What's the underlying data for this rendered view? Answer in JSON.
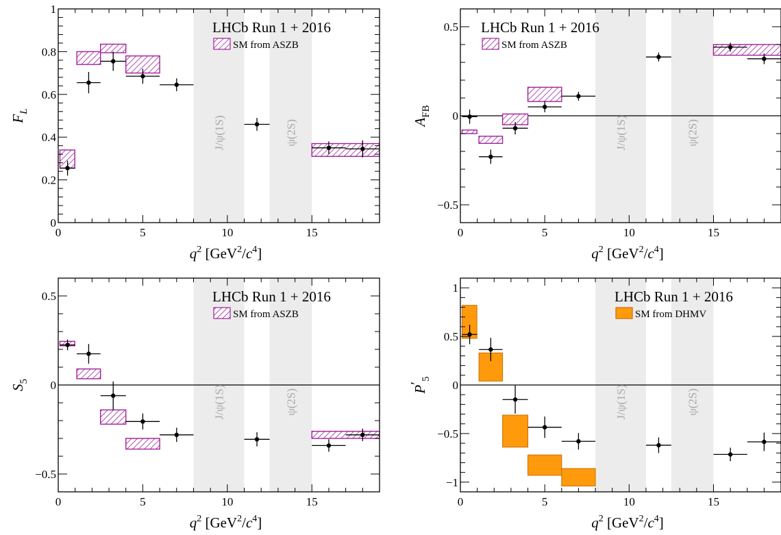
{
  "page": {
    "background": "#ffffff"
  },
  "style": {
    "asszb_color": "#a0209a",
    "dhmv_fill": "#ff9a0d",
    "dhmv_edge": "#c76f00",
    "veto_band": "#ececec",
    "veto_text": "#a9a9a9",
    "data_color": "#000000"
  },
  "chart_data": [
    {
      "type": "scatter",
      "panel": "FL",
      "title": "",
      "xlabel_parts": {
        "var": "q",
        "sup": "2",
        "unit_open": " [GeV",
        "unit_sup1": "2",
        "unit_mid": "/",
        "unit_var": "c",
        "unit_sup2": "4",
        "unit_close": "]"
      },
      "ylabel_parts": {
        "main": "F",
        "sub": "L"
      },
      "xlim": [
        0,
        19
      ],
      "ylim": [
        0,
        1
      ],
      "xticks": [
        "0",
        "5",
        "10",
        "15"
      ],
      "xtick_values": [
        0,
        5,
        10,
        15
      ],
      "yticks": [
        "0",
        "0.2",
        "0.4",
        "0.6",
        "0.8",
        "1"
      ],
      "ytick_values": [
        0,
        0.2,
        0.4,
        0.6,
        0.8,
        1
      ],
      "zero_line": false,
      "legend": {
        "title": "LHCb Run 1 + 2016",
        "entry": "SM from ASZB",
        "style": "hatch",
        "placement": "top-right"
      },
      "veto_bands": [
        {
          "label": "J/ψ(1S)",
          "x": [
            8,
            11
          ]
        },
        {
          "label": "ψ(2S)",
          "x": [
            12.5,
            15
          ]
        }
      ],
      "sm_prediction": [
        {
          "x": [
            0.1,
            0.98
          ],
          "y": [
            0.255,
            0.34
          ]
        },
        {
          "x": [
            1.1,
            2.5
          ],
          "y": [
            0.74,
            0.8
          ]
        },
        {
          "x": [
            2.5,
            4.0
          ],
          "y": [
            0.795,
            0.835
          ]
        },
        {
          "x": [
            4.0,
            6.0
          ],
          "y": [
            0.7,
            0.78
          ]
        },
        {
          "x": [
            15.0,
            19.0
          ],
          "y": [
            0.31,
            0.37
          ]
        }
      ],
      "data_points": [
        {
          "x": 0.55,
          "xerr": 0.45,
          "y": 0.255,
          "yerr": 0.035
        },
        {
          "x": 1.8,
          "xerr": 0.7,
          "y": 0.655,
          "yerr": 0.05
        },
        {
          "x": 3.25,
          "xerr": 0.75,
          "y": 0.755,
          "yerr": 0.045
        },
        {
          "x": 5.0,
          "xerr": 1.0,
          "y": 0.685,
          "yerr": 0.035
        },
        {
          "x": 7.0,
          "xerr": 1.0,
          "y": 0.645,
          "yerr": 0.03
        },
        {
          "x": 11.75,
          "xerr": 0.75,
          "y": 0.46,
          "yerr": 0.03
        },
        {
          "x": 16.0,
          "xerr": 1.0,
          "y": 0.35,
          "yerr": 0.03
        },
        {
          "x": 18.0,
          "xerr": 1.0,
          "y": 0.345,
          "yerr": 0.04
        }
      ]
    },
    {
      "type": "scatter",
      "panel": "AFB",
      "title": "",
      "xlabel_parts": {
        "var": "q",
        "sup": "2",
        "unit_open": " [GeV",
        "unit_sup1": "2",
        "unit_mid": "/",
        "unit_var": "c",
        "unit_sup2": "4",
        "unit_close": "]"
      },
      "ylabel_parts": {
        "main": "A",
        "sub": "FB"
      },
      "xlim": [
        0,
        19
      ],
      "ylim": [
        -0.6,
        0.6
      ],
      "xticks": [
        "0",
        "5",
        "10",
        "15"
      ],
      "xtick_values": [
        0,
        5,
        10,
        15
      ],
      "yticks": [
        "−0.5",
        "0",
        "0.5"
      ],
      "ytick_values": [
        -0.5,
        0,
        0.5
      ],
      "zero_line": true,
      "legend": {
        "title": "LHCb Run 1 + 2016",
        "entry": "SM from ASZB",
        "style": "hatch",
        "placement": "top-left"
      },
      "veto_bands": [
        {
          "label": "J/ψ(1S)",
          "x": [
            8,
            11
          ]
        },
        {
          "label": "ψ(2S)",
          "x": [
            12.5,
            15
          ]
        }
      ],
      "sm_prediction": [
        {
          "x": [
            0.1,
            0.98
          ],
          "y": [
            -0.1,
            -0.08
          ]
        },
        {
          "x": [
            1.1,
            2.5
          ],
          "y": [
            -0.155,
            -0.115
          ]
        },
        {
          "x": [
            2.5,
            4.0
          ],
          "y": [
            -0.05,
            0.01
          ]
        },
        {
          "x": [
            4.0,
            6.0
          ],
          "y": [
            0.08,
            0.16
          ]
        },
        {
          "x": [
            15.0,
            19.0
          ],
          "y": [
            0.34,
            0.4
          ]
        }
      ],
      "data_points": [
        {
          "x": 0.55,
          "xerr": 0.45,
          "y": -0.005,
          "yerr": 0.04
        },
        {
          "x": 1.8,
          "xerr": 0.7,
          "y": -0.23,
          "yerr": 0.04
        },
        {
          "x": 3.25,
          "xerr": 0.75,
          "y": -0.07,
          "yerr": 0.035
        },
        {
          "x": 5.0,
          "xerr": 1.0,
          "y": 0.05,
          "yerr": 0.03
        },
        {
          "x": 7.0,
          "xerr": 1.0,
          "y": 0.11,
          "yerr": 0.025
        },
        {
          "x": 11.75,
          "xerr": 0.75,
          "y": 0.33,
          "yerr": 0.025
        },
        {
          "x": 16.0,
          "xerr": 1.0,
          "y": 0.385,
          "yerr": 0.025
        },
        {
          "x": 18.0,
          "xerr": 1.0,
          "y": 0.32,
          "yerr": 0.03
        }
      ]
    },
    {
      "type": "scatter",
      "panel": "S5",
      "title": "",
      "xlabel_parts": {
        "var": "q",
        "sup": "2",
        "unit_open": " [GeV",
        "unit_sup1": "2",
        "unit_mid": "/",
        "unit_var": "c",
        "unit_sup2": "4",
        "unit_close": "]"
      },
      "ylabel_parts": {
        "main": "S",
        "sub": "5"
      },
      "xlim": [
        0,
        19
      ],
      "ylim": [
        -0.6,
        0.6
      ],
      "xticks": [
        "0",
        "5",
        "10",
        "15"
      ],
      "xtick_values": [
        0,
        5,
        10,
        15
      ],
      "yticks": [
        "−0.5",
        "0",
        "0.5"
      ],
      "ytick_values": [
        -0.5,
        0,
        0.5
      ],
      "zero_line": true,
      "legend": {
        "title": "LHCb Run 1 + 2016",
        "entry": "SM from ASZB",
        "style": "hatch",
        "placement": "top-right"
      },
      "veto_bands": [
        {
          "label": "J/ψ(1S)",
          "x": [
            8,
            11
          ]
        },
        {
          "label": "ψ(2S)",
          "x": [
            12.5,
            15
          ]
        }
      ],
      "sm_prediction": [
        {
          "x": [
            0.1,
            0.98
          ],
          "y": [
            0.22,
            0.245
          ]
        },
        {
          "x": [
            1.1,
            2.5
          ],
          "y": [
            0.035,
            0.09
          ]
        },
        {
          "x": [
            2.5,
            4.0
          ],
          "y": [
            -0.22,
            -0.14
          ]
        },
        {
          "x": [
            4.0,
            6.0
          ],
          "y": [
            -0.36,
            -0.3
          ]
        },
        {
          "x": [
            15.0,
            19.0
          ],
          "y": [
            -0.3,
            -0.26
          ]
        }
      ],
      "data_points": [
        {
          "x": 0.55,
          "xerr": 0.45,
          "y": 0.225,
          "yerr": 0.03
        },
        {
          "x": 1.8,
          "xerr": 0.7,
          "y": 0.175,
          "yerr": 0.055
        },
        {
          "x": 3.25,
          "xerr": 0.75,
          "y": -0.06,
          "yerr": 0.08
        },
        {
          "x": 5.0,
          "xerr": 1.0,
          "y": -0.205,
          "yerr": 0.045
        },
        {
          "x": 7.0,
          "xerr": 1.0,
          "y": -0.28,
          "yerr": 0.04
        },
        {
          "x": 11.75,
          "xerr": 0.75,
          "y": -0.305,
          "yerr": 0.04
        },
        {
          "x": 16.0,
          "xerr": 1.0,
          "y": -0.34,
          "yerr": 0.035
        },
        {
          "x": 18.0,
          "xerr": 1.0,
          "y": -0.28,
          "yerr": 0.035
        }
      ]
    },
    {
      "type": "scatter",
      "panel": "P5prime",
      "title": "",
      "xlabel_parts": {
        "var": "q",
        "sup": "2",
        "unit_open": " [GeV",
        "unit_sup1": "2",
        "unit_mid": "/",
        "unit_var": "c",
        "unit_sup2": "4",
        "unit_close": "]"
      },
      "ylabel_parts": {
        "main": "P",
        "prime": "′",
        "sub": "5"
      },
      "xlim": [
        0,
        19
      ],
      "ylim": [
        -1.1,
        1.1
      ],
      "xticks": [
        "0",
        "5",
        "10",
        "15"
      ],
      "xtick_values": [
        0,
        5,
        10,
        15
      ],
      "yticks": [
        "−1",
        "−0.5",
        "0",
        "0.5",
        "1"
      ],
      "ytick_values": [
        -1,
        -0.5,
        0,
        0.5,
        1
      ],
      "zero_line": true,
      "legend": {
        "title": "LHCb Run 1 + 2016",
        "entry": "SM from DHMV",
        "style": "filled",
        "placement": "top-right"
      },
      "veto_bands": [
        {
          "label": "J/ψ(1S)",
          "x": [
            8,
            11
          ]
        },
        {
          "label": "ψ(2S)",
          "x": [
            12.5,
            15
          ]
        }
      ],
      "sm_prediction": [
        {
          "x": [
            0.1,
            0.98
          ],
          "y": [
            0.48,
            0.82
          ]
        },
        {
          "x": [
            1.1,
            2.5
          ],
          "y": [
            0.04,
            0.33
          ]
        },
        {
          "x": [
            2.5,
            4.0
          ],
          "y": [
            -0.64,
            -0.31
          ]
        },
        {
          "x": [
            4.0,
            6.0
          ],
          "y": [
            -0.93,
            -0.72
          ]
        },
        {
          "x": [
            6.0,
            8.0
          ],
          "y": [
            -1.04,
            -0.86
          ]
        }
      ],
      "data_points": [
        {
          "x": 0.55,
          "xerr": 0.45,
          "y": 0.52,
          "yerr": 0.1
        },
        {
          "x": 1.8,
          "xerr": 0.7,
          "y": 0.365,
          "yerr": 0.12
        },
        {
          "x": 3.25,
          "xerr": 0.75,
          "y": -0.15,
          "yerr": 0.145
        },
        {
          "x": 5.0,
          "xerr": 1.0,
          "y": -0.435,
          "yerr": 0.11
        },
        {
          "x": 7.0,
          "xerr": 1.0,
          "y": -0.58,
          "yerr": 0.085
        },
        {
          "x": 11.75,
          "xerr": 0.75,
          "y": -0.62,
          "yerr": 0.08
        },
        {
          "x": 16.0,
          "xerr": 1.0,
          "y": -0.715,
          "yerr": 0.07
        },
        {
          "x": 18.0,
          "xerr": 1.0,
          "y": -0.585,
          "yerr": 0.095
        }
      ]
    }
  ]
}
